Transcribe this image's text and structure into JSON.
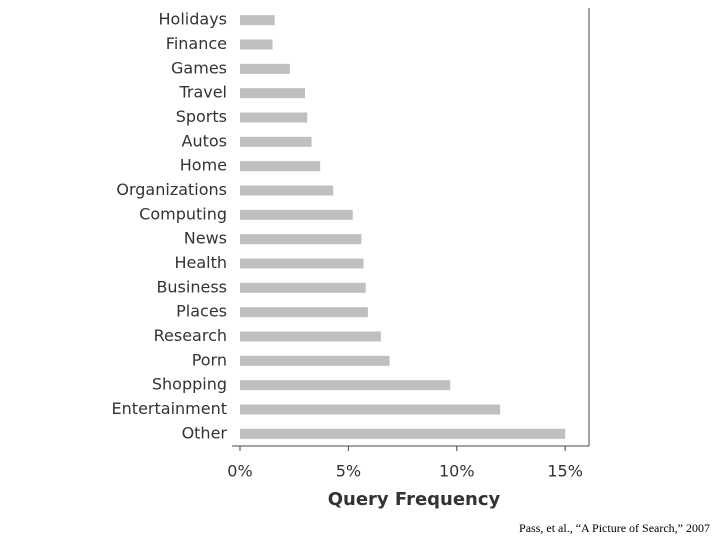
{
  "chart_data": {
    "type": "bar",
    "orientation": "horizontal",
    "categories": [
      "Holidays",
      "Finance",
      "Games",
      "Travel",
      "Sports",
      "Autos",
      "Home",
      "Organizations",
      "Computing",
      "News",
      "Health",
      "Business",
      "Places",
      "Research",
      "Porn",
      "Shopping",
      "Entertainment",
      "Other"
    ],
    "values": [
      1.6,
      1.5,
      2.3,
      3.0,
      3.1,
      3.3,
      3.7,
      4.3,
      5.2,
      5.6,
      5.7,
      5.8,
      5.9,
      6.5,
      6.9,
      9.7,
      12.0,
      15.0
    ],
    "color": "#bfbfbf",
    "xlim": [
      0,
      16.1
    ],
    "xticks": [
      {
        "value": 0,
        "label": "0%"
      },
      {
        "value": 5,
        "label": "5%"
      },
      {
        "value": 10,
        "label": "10%"
      },
      {
        "value": 15,
        "label": "15%"
      }
    ],
    "x_label": "Query Frequency"
  },
  "footer": "Pass, et al., “A Picture of Search,” 2007"
}
